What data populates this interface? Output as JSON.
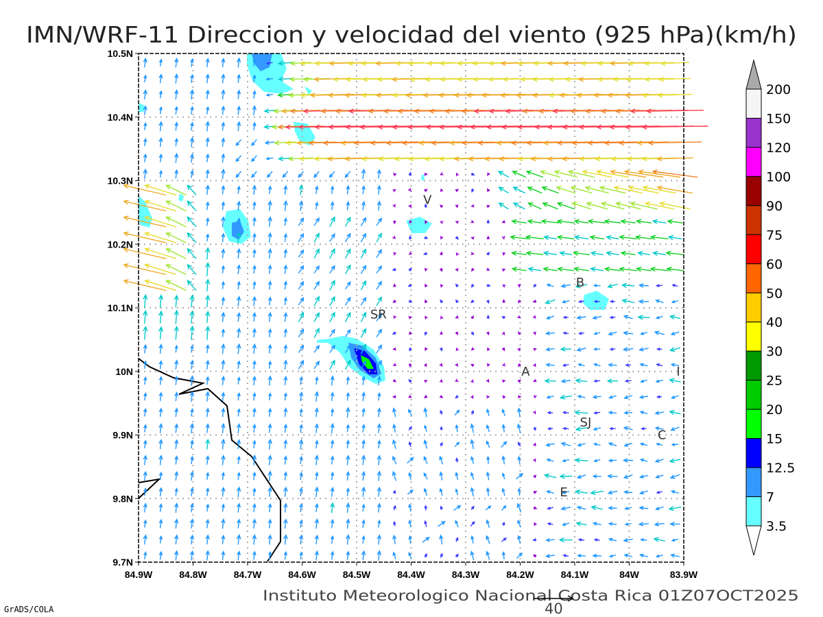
{
  "title": "IMN/WRF-11 Direccion y velocidad del viento (925 hPa)(km/h)",
  "footer": "Instituto Meteorologico Nacional Costa Rica 01Z07OCT2025",
  "credit": "GrADS/COLA",
  "scale_vector": {
    "label": "40",
    "value_kmh": 40
  },
  "map": {
    "lon_range": [
      -84.9,
      -83.9
    ],
    "lat_range": [
      9.7,
      10.5
    ],
    "lon_ticks": [
      "84.9W",
      "84.8W",
      "84.7W",
      "84.6W",
      "84.5W",
      "84.4W",
      "84.3W",
      "84.2W",
      "84.1W",
      "84W",
      "83.9W"
    ],
    "lat_ticks": [
      "9.7N",
      "9.8N",
      "9.9N",
      "10N",
      "10.1N",
      "10.2N",
      "10.3N",
      "10.4N",
      "10.5N"
    ],
    "stations": [
      {
        "label": "V",
        "lon": -84.37,
        "lat": 10.27
      },
      {
        "label": "SR",
        "lon": -84.46,
        "lat": 10.09
      },
      {
        "label": "B",
        "lon": -84.09,
        "lat": 10.14
      },
      {
        "label": "A",
        "lon": -84.19,
        "lat": 10.0
      },
      {
        "label": "SJ",
        "lon": -84.08,
        "lat": 9.92
      },
      {
        "label": "C",
        "lon": -83.94,
        "lat": 9.9
      },
      {
        "label": "E",
        "lon": -84.12,
        "lat": 9.81
      },
      {
        "label": "I",
        "lon": -83.91,
        "lat": 10.0
      }
    ]
  },
  "colorbar": {
    "labels": [
      "200",
      "150",
      "120",
      "100",
      "90",
      "75",
      "60",
      "50",
      "40",
      "30",
      "25",
      "20",
      "15",
      "12.5",
      "7",
      "3.5"
    ],
    "colors": [
      "#f5f5f5",
      "#9933cc",
      "#ff00ff",
      "#990000",
      "#cc3300",
      "#ff0000",
      "#ff6600",
      "#ffcc00",
      "#ffff00",
      "#009900",
      "#00cc00",
      "#00ff00",
      "#0000ff",
      "#3399ff",
      "#66ffff"
    ],
    "over_color": "#aaaaaa",
    "under_color": "#ffffff"
  }
}
